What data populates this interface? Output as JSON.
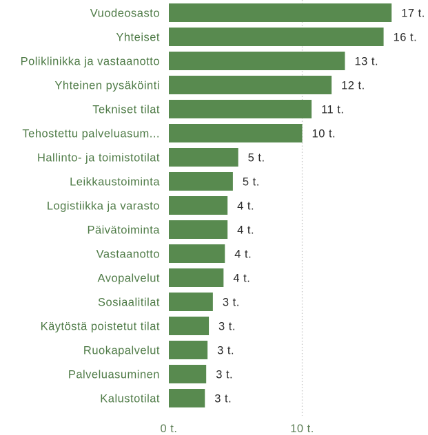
{
  "chart_data": {
    "type": "bar",
    "orientation": "horizontal",
    "categories": [
      "Vuodeosasto",
      "Yhteiset",
      "Poliklinikka ja vastaanotto",
      "Yhteinen pysäköinti",
      "Tekniset tilat",
      "Tehostettu palveluasum...",
      "Hallinto- ja toimistotilat",
      "Leikkaustoiminta",
      "Logistiikka ja varasto",
      "Päivätoiminta",
      "Vastaanotto",
      "Avopalvelut",
      "Sosiaalitilat",
      "Käytöstä poistetut tilat",
      "Ruokapalvelut",
      "Palveluasuminen",
      "Kalustotilat"
    ],
    "values": [
      16.7,
      16.1,
      13.2,
      12.2,
      10.7,
      10.0,
      5.2,
      4.8,
      4.4,
      4.4,
      4.2,
      4.1,
      3.3,
      3.0,
      2.9,
      2.8,
      2.7
    ],
    "data_labels": [
      "17 t.",
      "16 t.",
      "13 t.",
      "12 t.",
      "11 t.",
      "10 t.",
      "5 t.",
      "5 t.",
      "4 t.",
      "4 t.",
      "4 t.",
      "4 t.",
      "3 t.",
      "3 t.",
      "3 t.",
      "3 t.",
      "3 t."
    ],
    "x_ticks": [
      0,
      10
    ],
    "tick_labels": [
      "0 t.",
      "10 t."
    ],
    "xlim": [
      0,
      17
    ],
    "grid": true,
    "colors": {
      "bar": "#588a4f",
      "category_label": "#4f7b47",
      "data_label": "#2b2b2b",
      "tick_label": "#5e7f57",
      "grid": "#c6c6c6",
      "background": "#ffffff"
    }
  }
}
